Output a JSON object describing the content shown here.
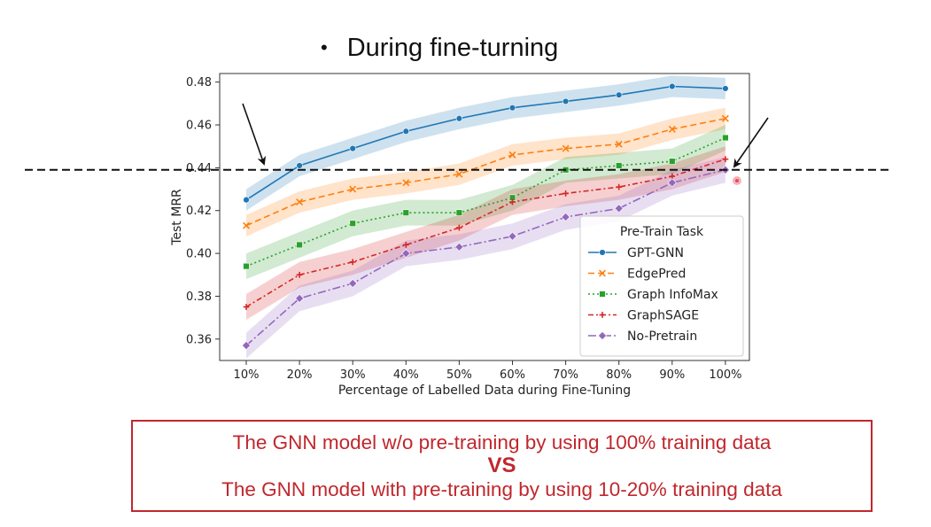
{
  "slide": {
    "bullet": "•",
    "heading": "During fine-turning"
  },
  "callout": {
    "line1": "The GNN model w/o pre-training by using 100% training data",
    "vs": "VS",
    "line2": "The GNN model with pre-training by using 10-20% training data",
    "color": "#c0272d"
  },
  "chart_data": {
    "type": "line",
    "title": "",
    "xlabel": "Percentage of Labelled Data during Fine-Tuning",
    "ylabel": "Test MRR",
    "categories": [
      "10%",
      "20%",
      "30%",
      "40%",
      "50%",
      "60%",
      "70%",
      "80%",
      "90%",
      "100%"
    ],
    "ylim": [
      0.35,
      0.484
    ],
    "yticks": [
      "0.36",
      "0.38",
      "0.40",
      "0.42",
      "0.44",
      "0.46",
      "0.48"
    ],
    "ytick_values": [
      0.36,
      0.38,
      0.4,
      0.42,
      0.44,
      0.46,
      0.48
    ],
    "grid": false,
    "legend_title": "Pre-Train Task",
    "legend_position": "lower-right",
    "reference_line": 0.439,
    "series": [
      {
        "name": "GPT-GNN",
        "color": "#1f77b4",
        "dash": "",
        "marker": "circle",
        "values": [
          0.425,
          0.441,
          0.449,
          0.457,
          0.463,
          0.468,
          0.471,
          0.474,
          0.478,
          0.477
        ],
        "band": 0.005
      },
      {
        "name": "EdgePred",
        "color": "#ff7f0e",
        "dash": "7,4",
        "marker": "x",
        "values": [
          0.413,
          0.424,
          0.43,
          0.433,
          0.437,
          0.446,
          0.449,
          0.451,
          0.458,
          0.463
        ],
        "band": 0.005
      },
      {
        "name": "Graph InfoMax",
        "color": "#2ca02c",
        "dash": "2,3",
        "marker": "square",
        "values": [
          0.394,
          0.404,
          0.414,
          0.419,
          0.419,
          0.426,
          0.439,
          0.441,
          0.443,
          0.454
        ],
        "band": 0.006
      },
      {
        "name": "GraphSAGE",
        "color": "#d62728",
        "dash": "6,3,2,3",
        "marker": "plus",
        "values": [
          0.375,
          0.39,
          0.396,
          0.404,
          0.412,
          0.424,
          0.428,
          0.431,
          0.436,
          0.444
        ],
        "band": 0.006
      },
      {
        "name": "No-Pretrain",
        "color": "#9467bd",
        "dash": "9,3,2,3",
        "marker": "diamond",
        "values": [
          0.357,
          0.379,
          0.386,
          0.4,
          0.403,
          0.408,
          0.417,
          0.421,
          0.433,
          0.439
        ],
        "band": 0.006
      }
    ]
  }
}
